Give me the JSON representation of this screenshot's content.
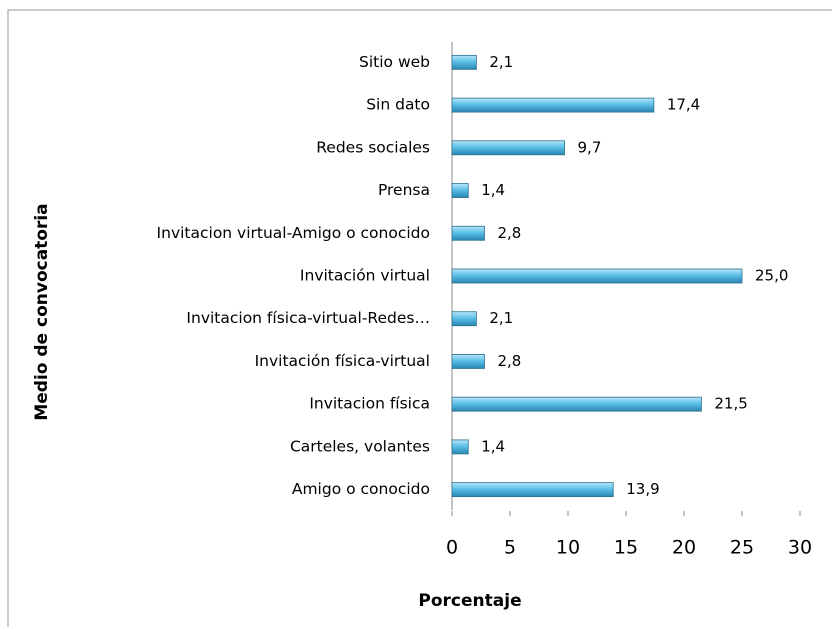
{
  "chart_data": {
    "type": "bar",
    "orientation": "horizontal",
    "categories": [
      "Sitio web",
      "Sin dato",
      "Redes sociales",
      "Prensa",
      "Invitacion virtual-Amigo o conocido",
      "Invitación virtual",
      "Invitacion física-virtual-Redes…",
      "Invitación física-virtual",
      "Invitacion física",
      "Carteles, volantes",
      "Amigo o conocido"
    ],
    "values": [
      2.1,
      17.4,
      9.7,
      1.4,
      2.8,
      25.0,
      2.1,
      2.8,
      21.5,
      1.4,
      13.9
    ],
    "value_labels": [
      "2,1",
      "17,4",
      "9,7",
      "1,4",
      "2,8",
      "25,0",
      "2,1",
      "2,8",
      "21,5",
      "1,4",
      "13,9"
    ],
    "color": "#5bc0e8",
    "xlabel": "Porcentaje",
    "ylabel": "Medio de convocatoria",
    "xlim": [
      0,
      30
    ],
    "xticks": [
      0,
      5,
      10,
      15,
      20,
      25,
      30
    ]
  }
}
